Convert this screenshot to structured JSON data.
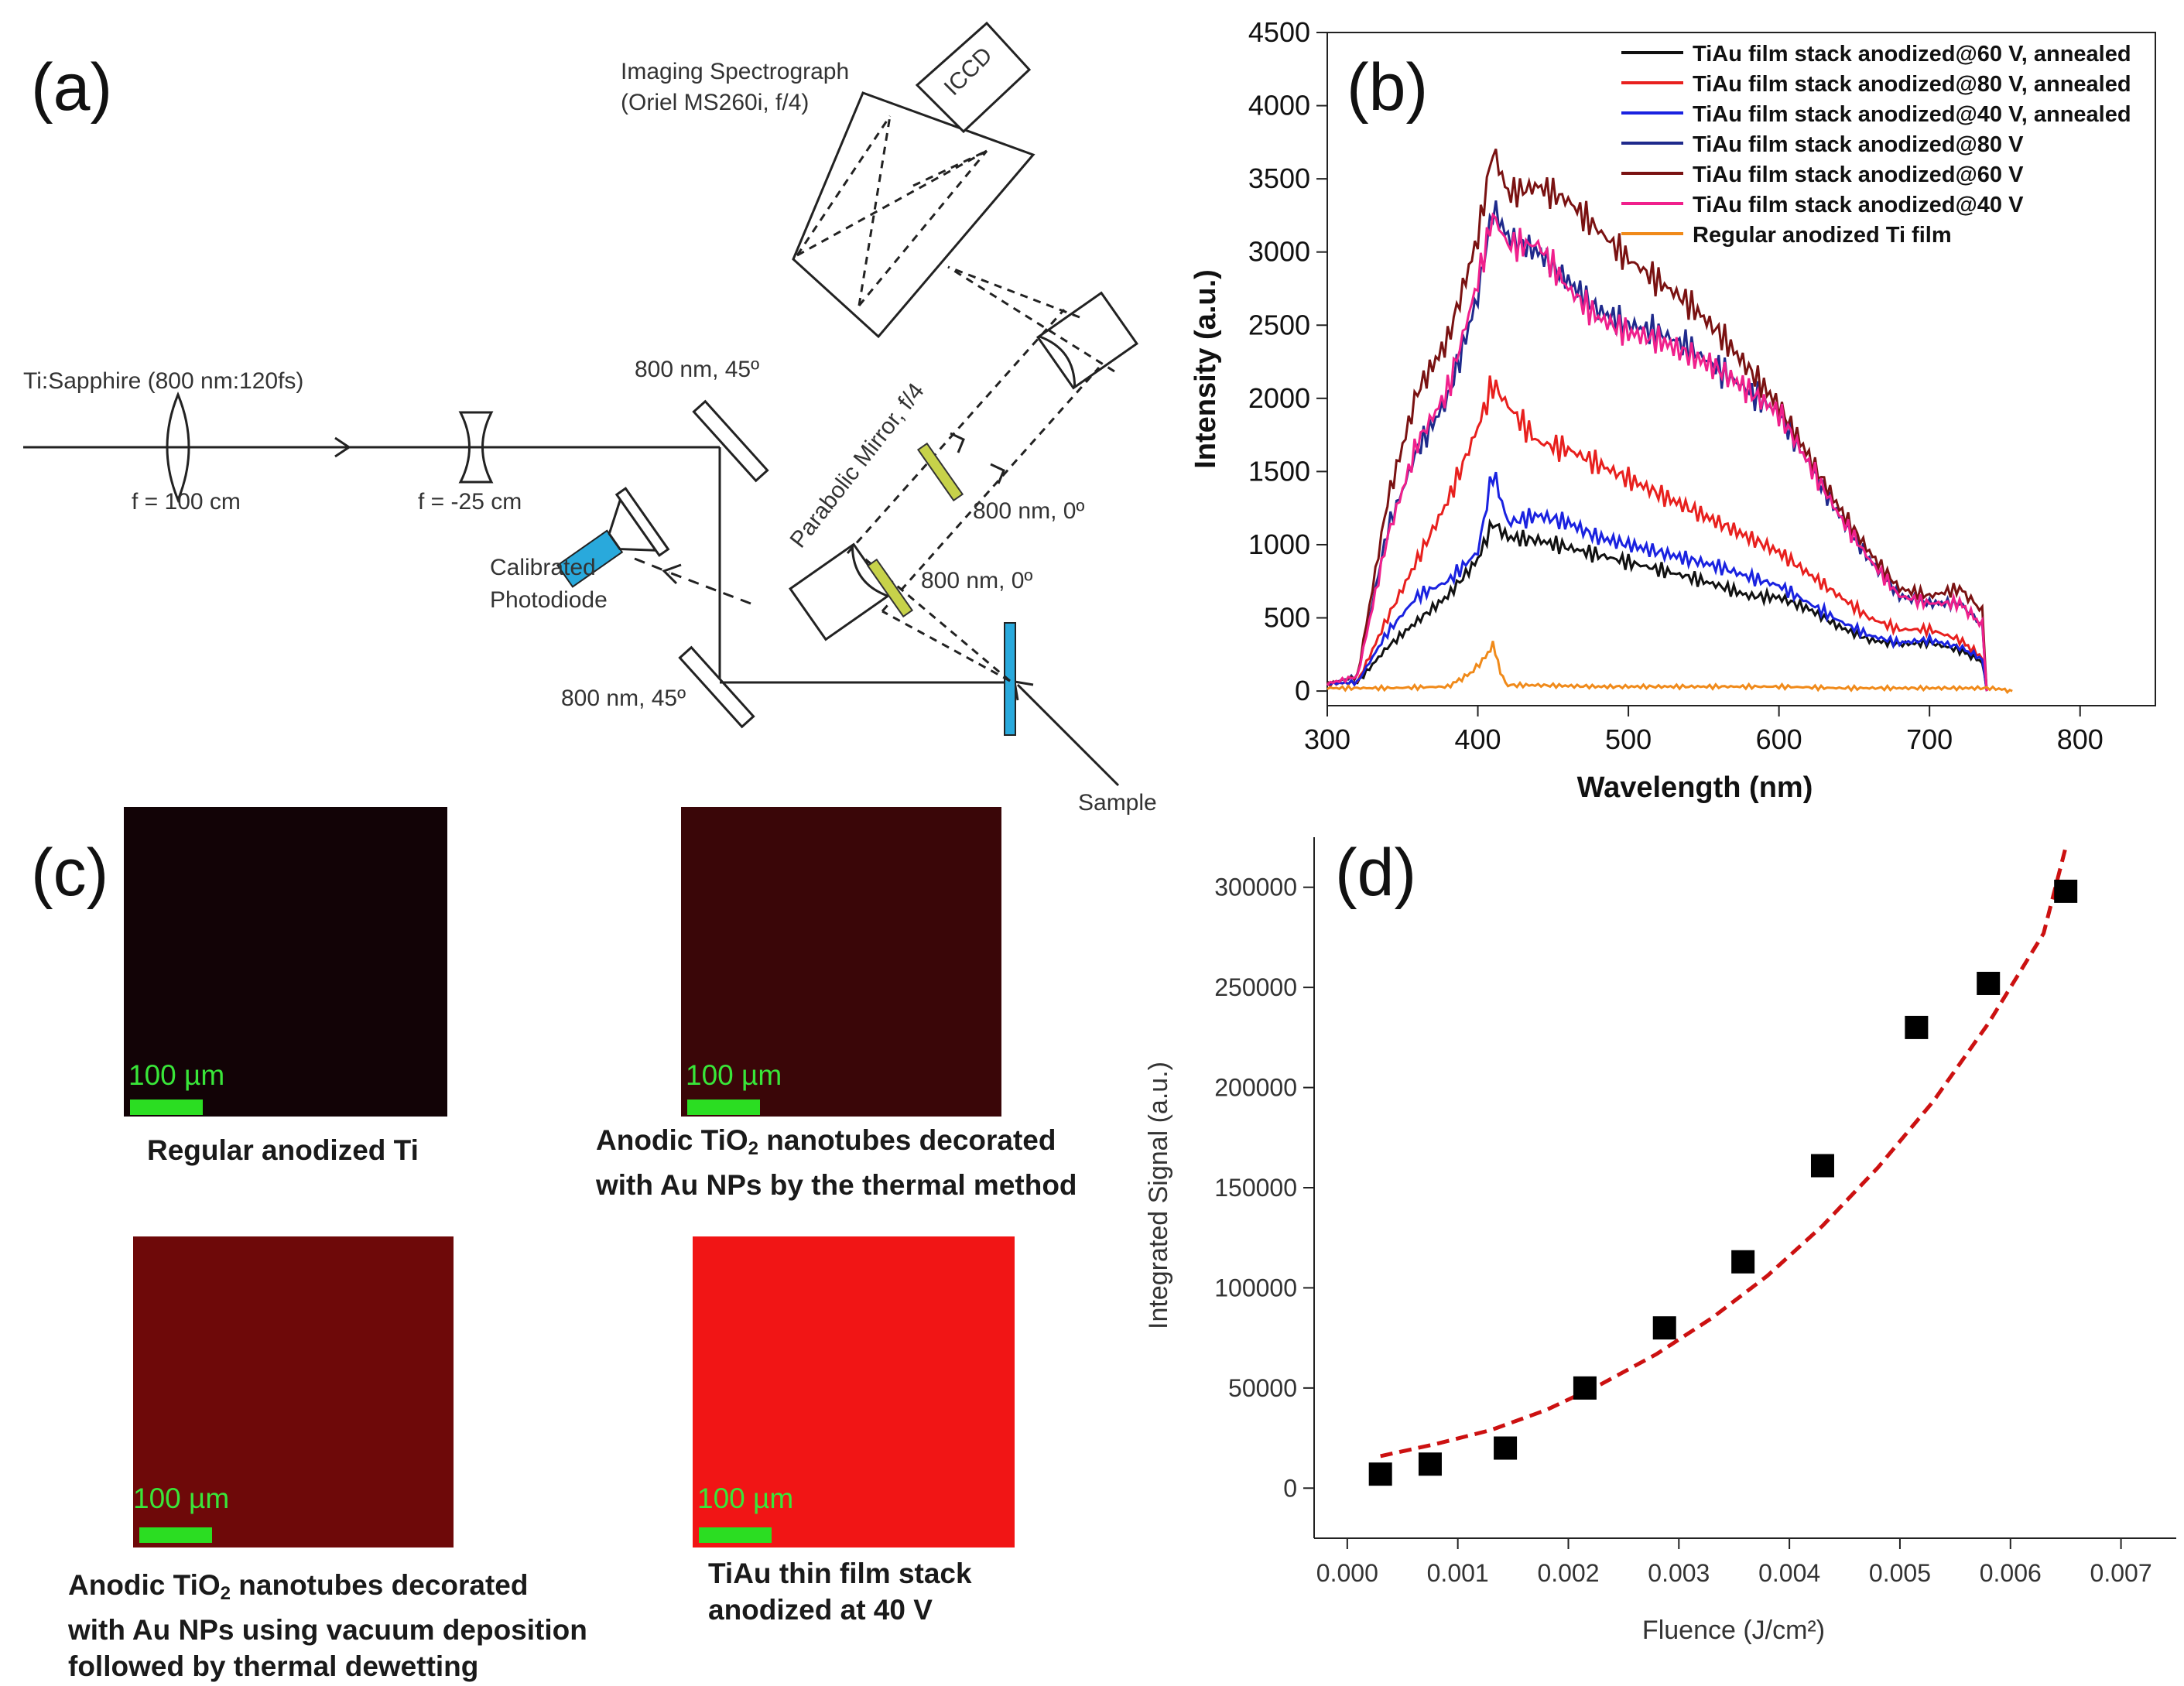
{
  "panel_labels": {
    "a": "(a)",
    "b": "(b)",
    "c": "(c)",
    "d": "(d)"
  },
  "setup": {
    "laser": "Ti:Sapphire (800 nm:120fs)",
    "lens1": "f = 100 cm",
    "lens2": "f = -25 cm",
    "mirror_top": "800 nm, 45º",
    "mirror_bottom": "800 nm, 45º",
    "photodiode_line1": "Calibrated",
    "photodiode_line2": "Photodiode",
    "spectrograph_line1": "Imaging Spectrograph",
    "spectrograph_line2": "(Oriel MS260i, f/4)",
    "iccd": "ICCD",
    "parabolic": "Parabolic Mirror, f/4",
    "filter1": "800 nm, 0º",
    "filter2": "800 nm, 0º",
    "sample": "Sample"
  },
  "chart_data": [
    {
      "id": "b",
      "type": "line",
      "title": "",
      "xlabel": "Wavelength  (nm)",
      "ylabel": "Intensity (a.u.)",
      "xlim": [
        300,
        850
      ],
      "ylim": [
        -100,
        4500
      ],
      "xticks": [
        300,
        400,
        500,
        600,
        700,
        800
      ],
      "yticks": [
        0,
        500,
        1000,
        1500,
        2000,
        2500,
        3000,
        3500,
        4000,
        4500
      ],
      "legend_position": "top-right",
      "series": [
        {
          "name": "TiAu film stack anodized@60 V, annealed",
          "color": "#111111",
          "x": [
            300,
            320,
            340,
            360,
            380,
            400,
            410,
            420,
            440,
            460,
            480,
            500,
            520,
            540,
            560,
            580,
            600,
            620,
            640,
            660,
            680,
            700,
            720,
            735,
            738
          ],
          "y": [
            50,
            60,
            300,
            480,
            650,
            900,
            1150,
            1050,
            1030,
            980,
            930,
            880,
            830,
            780,
            720,
            650,
            640,
            560,
            440,
            350,
            320,
            330,
            280,
            200,
            0
          ]
        },
        {
          "name": "TiAu film stack anodized@80 V, annealed",
          "color": "#e8201e",
          "x": [
            300,
            320,
            340,
            360,
            380,
            400,
            410,
            420,
            440,
            460,
            480,
            500,
            520,
            540,
            560,
            580,
            600,
            620,
            640,
            660,
            680,
            700,
            720,
            735,
            738
          ],
          "y": [
            50,
            60,
            500,
            900,
            1300,
            1800,
            2100,
            1950,
            1700,
            1650,
            1550,
            1450,
            1350,
            1250,
            1150,
            1050,
            950,
            800,
            650,
            500,
            420,
            420,
            350,
            230,
            0
          ]
        },
        {
          "name": "TiAu film stack anodized@40 V, annealed",
          "color": "#1a22e0",
          "x": [
            300,
            320,
            340,
            360,
            380,
            400,
            410,
            420,
            440,
            460,
            480,
            500,
            520,
            540,
            560,
            580,
            600,
            620,
            640,
            660,
            680,
            700,
            720,
            735,
            738
          ],
          "y": [
            50,
            60,
            400,
            650,
            750,
            950,
            1500,
            1150,
            1200,
            1150,
            1050,
            1000,
            950,
            900,
            850,
            780,
            720,
            600,
            480,
            380,
            330,
            350,
            300,
            220,
            0
          ]
        },
        {
          "name": "TiAu film stack anodized@80 V",
          "color": "#1f2a8c",
          "x": [
            300,
            320,
            340,
            360,
            380,
            400,
            410,
            420,
            440,
            460,
            480,
            500,
            520,
            540,
            560,
            580,
            600,
            620,
            640,
            660,
            680,
            700,
            720,
            735,
            738
          ],
          "y": [
            50,
            100,
            1100,
            1650,
            2000,
            2700,
            3300,
            3100,
            3000,
            2800,
            2600,
            2500,
            2450,
            2350,
            2200,
            2050,
            1900,
            1550,
            1200,
            900,
            650,
            600,
            600,
            450,
            0
          ]
        },
        {
          "name": "TiAu film stack anodized@60 V",
          "color": "#7a1212",
          "x": [
            300,
            320,
            340,
            360,
            380,
            400,
            410,
            420,
            440,
            460,
            480,
            500,
            520,
            540,
            560,
            580,
            600,
            620,
            640,
            660,
            680,
            700,
            720,
            735,
            738
          ],
          "y": [
            50,
            100,
            1300,
            2050,
            2400,
            3100,
            3700,
            3400,
            3450,
            3350,
            3150,
            2950,
            2800,
            2650,
            2450,
            2200,
            1950,
            1600,
            1250,
            950,
            700,
            650,
            700,
            550,
            0
          ]
        },
        {
          "name": "TiAu film stack anodized@40 V",
          "color": "#f0208c",
          "x": [
            300,
            320,
            340,
            360,
            380,
            400,
            410,
            420,
            440,
            460,
            480,
            500,
            520,
            540,
            560,
            580,
            600,
            620,
            640,
            660,
            680,
            700,
            720,
            735,
            738
          ],
          "y": [
            50,
            100,
            1050,
            1700,
            2050,
            2800,
            3250,
            3050,
            3050,
            2750,
            2550,
            2450,
            2400,
            2300,
            2200,
            2050,
            1900,
            1550,
            1200,
            900,
            650,
            600,
            600,
            450,
            0
          ]
        },
        {
          "name": "Regular anodized Ti film",
          "color": "#f08a1a",
          "x": [
            300,
            340,
            380,
            395,
            405,
            410,
            415,
            420,
            440,
            480,
            520,
            560,
            600,
            640,
            680,
            720,
            740,
            750,
            755
          ],
          "y": [
            20,
            20,
            30,
            120,
            230,
            330,
            120,
            40,
            40,
            30,
            30,
            30,
            30,
            20,
            20,
            20,
            20,
            10,
            0
          ]
        }
      ]
    },
    {
      "id": "d",
      "type": "scatter",
      "title": "",
      "xlabel": "Fluence  (J/cm²)",
      "ylabel": "Integrated Signal (a.u.)",
      "xlim": [
        -0.0003,
        0.0075
      ],
      "ylim": [
        -25000,
        325000
      ],
      "xticks": [
        0.0,
        0.001,
        0.002,
        0.003,
        0.004,
        0.005,
        0.006,
        0.007
      ],
      "xtick_labels": [
        "0.000",
        "0.001",
        "0.002",
        "0.003",
        "0.004",
        "0.005",
        "0.006",
        "0.007"
      ],
      "yticks": [
        0,
        50000,
        100000,
        150000,
        200000,
        250000,
        300000
      ],
      "series": [
        {
          "name": "data",
          "marker": "square",
          "color": "#000000",
          "x": [
            0.0003,
            0.00075,
            0.00143,
            0.00215,
            0.00287,
            0.00358,
            0.0043,
            0.00515,
            0.0058,
            0.0065
          ],
          "y": [
            7000,
            12000,
            20000,
            50000,
            80000,
            113000,
            161000,
            230000,
            252000,
            298000
          ]
        },
        {
          "name": "fit",
          "style": "dashed",
          "color": "#cc1111",
          "x": [
            0.0003,
            0.0008,
            0.0013,
            0.0018,
            0.0023,
            0.0028,
            0.0033,
            0.0038,
            0.0043,
            0.0048,
            0.0053,
            0.0058,
            0.0063,
            0.0065
          ],
          "y": [
            16000,
            22000,
            29000,
            39000,
            52000,
            67000,
            85000,
            106000,
            131000,
            160000,
            193000,
            232000,
            277000,
            320000
          ]
        }
      ]
    }
  ],
  "panel_c": {
    "tiles": [
      {
        "scale": "100 µm",
        "caption_lines": [
          "Regular anodized Ti"
        ]
      },
      {
        "scale": "100 µm",
        "caption_lines": [
          "Anodic TiO",
          "2",
          " nanotubes decorated",
          "with Au NPs by the thermal method"
        ]
      },
      {
        "scale": "100 µm",
        "caption_lines": [
          "Anodic TiO",
          "2",
          " nanotubes decorated",
          "with Au NPs using vacuum deposition",
          "followed by thermal dewetting"
        ]
      },
      {
        "scale": "100 µm",
        "caption_lines": [
          "TiAu thin film stack",
          "anodized at 40 V"
        ]
      }
    ]
  }
}
